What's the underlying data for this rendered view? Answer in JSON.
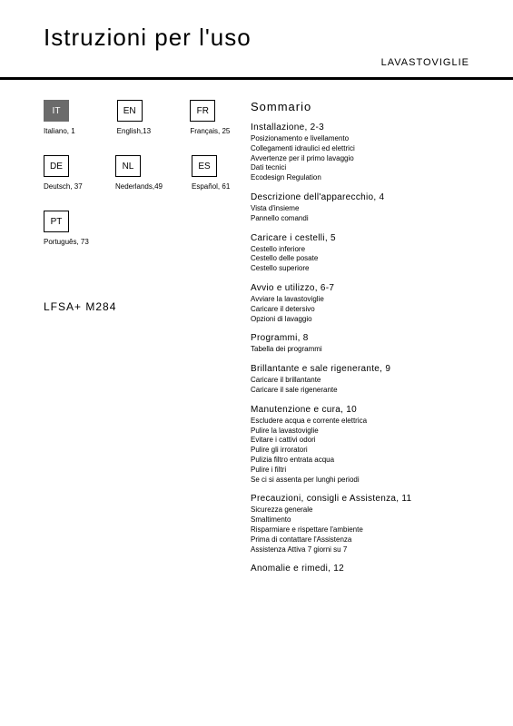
{
  "title": "Istruzioni per l'uso",
  "subtitle": "LAVASTOVIGLIE",
  "model": "LFSA+ M284",
  "languages": [
    [
      {
        "code": "IT",
        "label": "Italiano,  1",
        "active": true
      },
      {
        "code": "EN",
        "label": "English,13",
        "active": false
      },
      {
        "code": "FR",
        "label": "Français, 25",
        "active": false
      }
    ],
    [
      {
        "code": "DE",
        "label": "Deutsch, 37",
        "active": false
      },
      {
        "code": "NL",
        "label": "Nederlands,49",
        "active": false
      },
      {
        "code": "ES",
        "label": "Español,  61",
        "active": false
      }
    ],
    [
      {
        "code": "PT",
        "label": "Português,  73",
        "active": false
      }
    ]
  ],
  "toc_title": "Sommario",
  "sections": [
    {
      "head": "Installazione, 2-3",
      "items": [
        "Posizionamento e livellamento",
        "Collegamenti idraulici ed elettrici",
        "Avvertenze per il primo lavaggio",
        "Dati tecnici",
        "Ecodesign Regulation"
      ]
    },
    {
      "head": "Descrizione dell'apparecchio, 4",
      "items": [
        "Vista d'insieme",
        "Pannello comandi"
      ]
    },
    {
      "head": "Caricare i cestelli, 5",
      "items": [
        "Cestello inferiore",
        "Cestello delle posate",
        "Cestello superiore"
      ]
    },
    {
      "head": "Avvio e utilizzo, 6-7",
      "items": [
        "Avviare la lavastoviglie",
        "Caricare il detersivo",
        "Opzioni di lavaggio"
      ]
    },
    {
      "head": "Programmi, 8",
      "items": [
        "Tabella dei programmi"
      ]
    },
    {
      "head": "Brillantante e sale rigenerante, 9",
      "items": [
        "Caricare il brillantante",
        "Caricare il sale rigenerante"
      ]
    },
    {
      "head": "Manutenzione e cura, 10",
      "items": [
        "Escludere acqua e corrente elettrica",
        "Pulire la lavastoviglie",
        "Evitare i cattivi odori",
        "Pulire gli irroratori",
        "Pulizia filtro entrata acqua",
        "Pulire i filtri",
        "Se ci si assenta per lunghi periodi"
      ]
    },
    {
      "head": "Precauzioni, consigli e Assistenza, 11",
      "items": [
        "Sicurezza generale",
        "Smaltimento",
        "Risparmiare e rispettare l'ambiente",
        "Prima di contattare l'Assistenza",
        "Assistenza Attiva 7 giorni su 7"
      ]
    },
    {
      "head": "Anomalie e rimedi, 12",
      "items": []
    }
  ]
}
